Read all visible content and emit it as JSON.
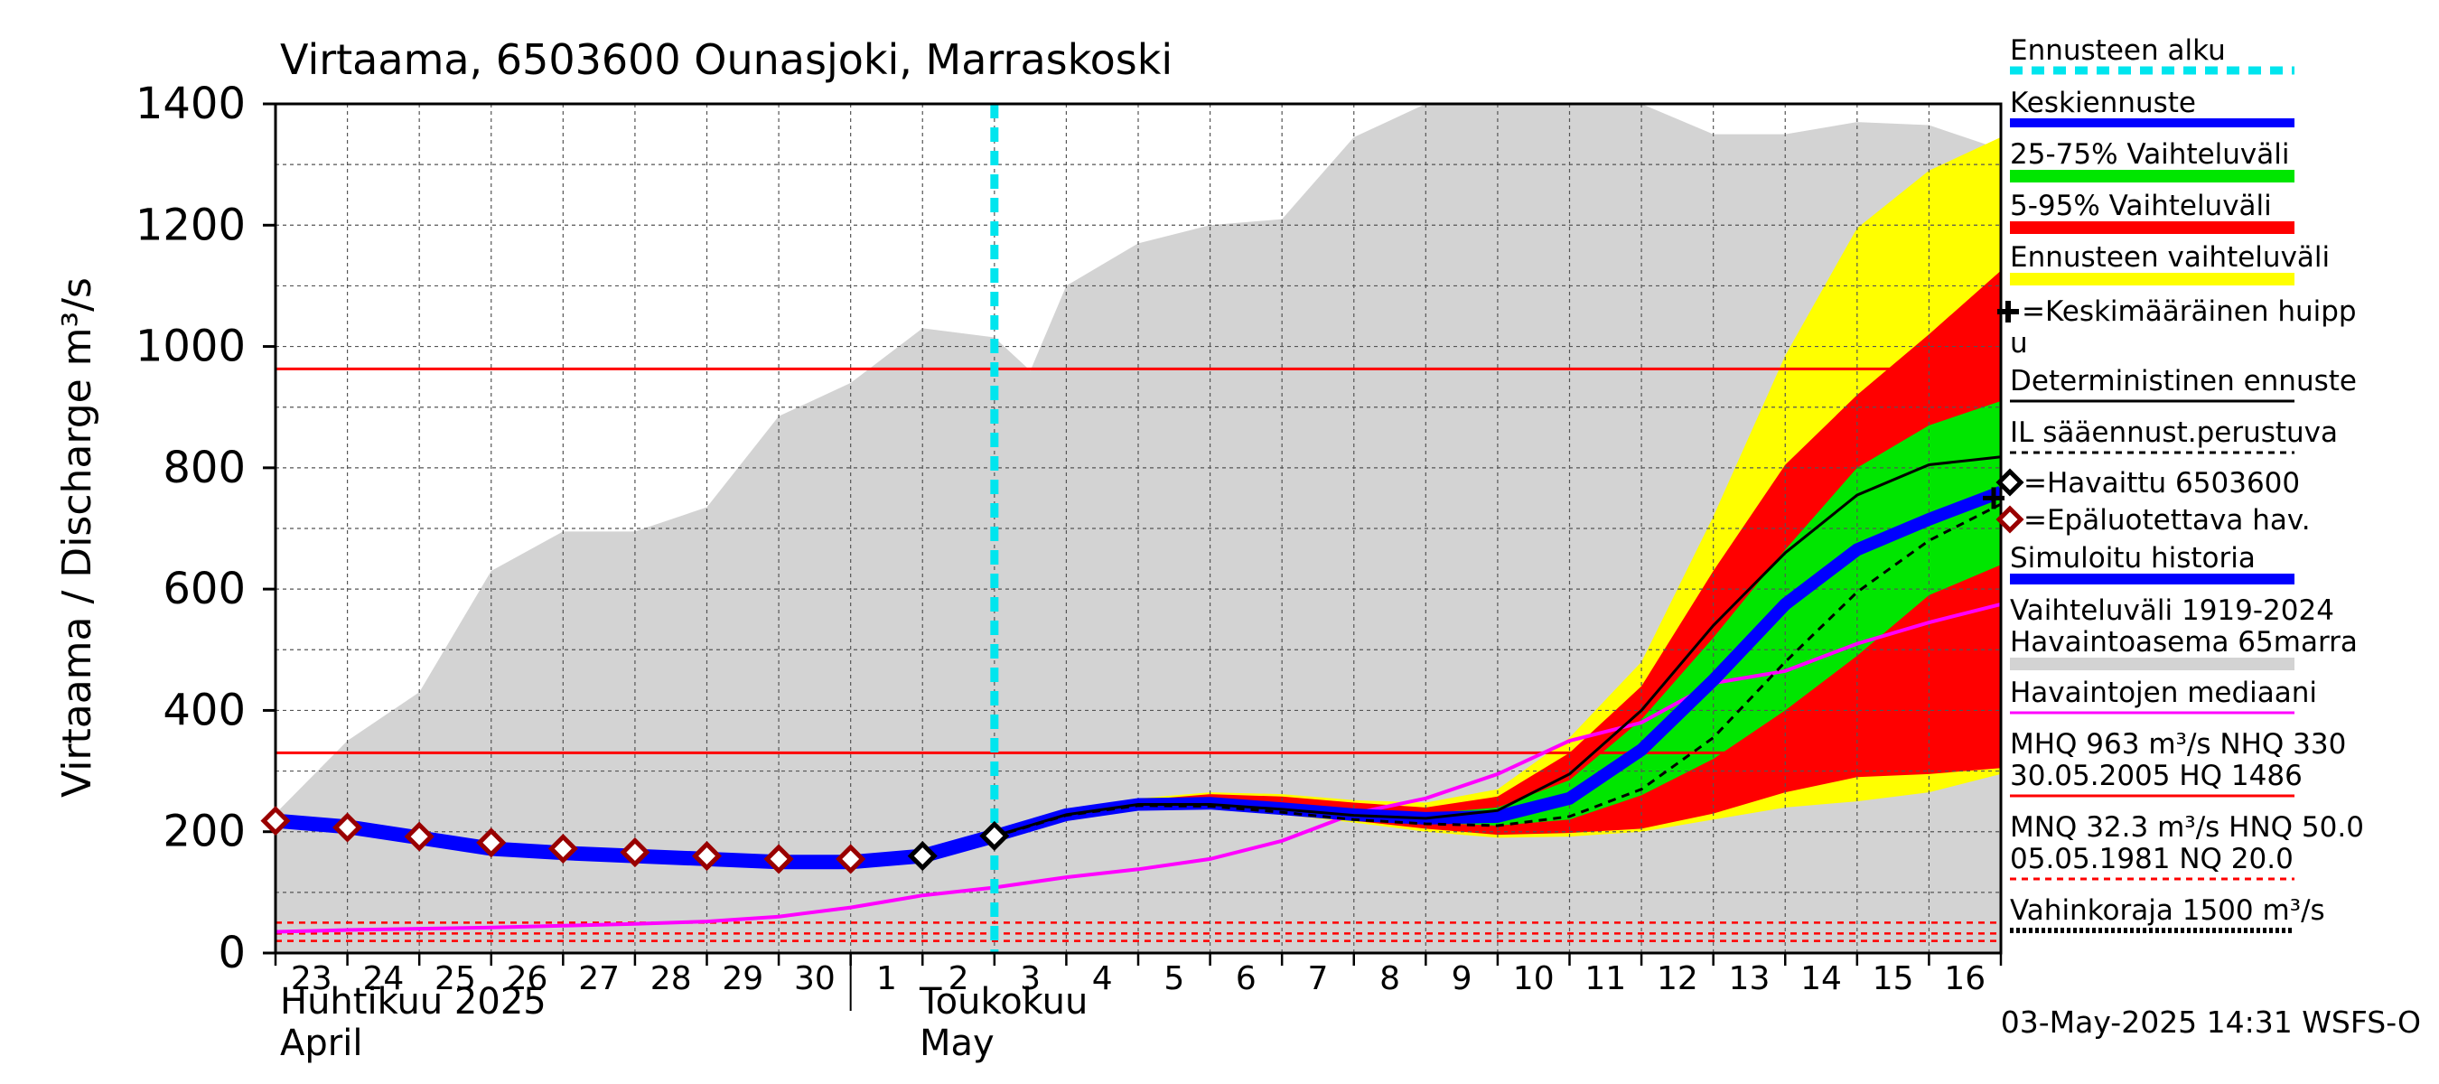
{
  "chart_data": {
    "type": "area",
    "title": "Virtaama, 6503600 Ounasjoki, Marraskoski",
    "ylabel": "Virtaama / Discharge   m³/s",
    "ylim": [
      0,
      1400
    ],
    "yticks": [
      0,
      200,
      400,
      600,
      800,
      1000,
      1200,
      1400
    ],
    "grid": true,
    "x_start": "2025-04-23",
    "x_end": "2025-05-17",
    "day_labels": [
      "23",
      "24",
      "25",
      "26",
      "27",
      "28",
      "29",
      "30",
      "1",
      "2",
      "3",
      "4",
      "5",
      "6",
      "7",
      "8",
      "9",
      "10",
      "11",
      "12",
      "13",
      "14",
      "15",
      "16"
    ],
    "month_labels": [
      {
        "day": "2025-04-23",
        "fi": "Huhtikuu  2025",
        "en": "April"
      },
      {
        "day": "2025-05-02",
        "fi": "Toukokuu",
        "en": "May"
      }
    ],
    "forecast_start": "2025-05-03",
    "timestamp": "03-May-2025 14:31 WSFS-O",
    "legend": {
      "forecast_start": "Ennusteen alku",
      "mean_forecast": "Keskiennuste",
      "band_25_75": "25-75% Vaihteluväli",
      "band_5_95": "5-95% Vaihteluväli",
      "forecast_range": "Ennusteen vaihteluväli",
      "mean_peak_1": "=Keskimääräinen huipp",
      "mean_peak_2": "u",
      "deterministic": "Deterministinen ennuste",
      "il_forecast": "IL sääennust.perustuva",
      "observed": "=Havaittu 6503600",
      "unreliable": "=Epäluotettava hav.",
      "simulated": "Simuloitu historia",
      "range_hist_1": "Vaihteluväli 1919-2024",
      "range_hist_2": " Havaintoasema 65marra",
      "median": "Havaintojen mediaani",
      "mhq_1": "MHQ  963 m³/s NHQ  330",
      "mhq_2": "30.05.2005 HQ 1486",
      "mnq_1": "MNQ 32.3 m³/s HNQ 50.0",
      "mnq_2": "05.05.1981 NQ 20.0",
      "damage": "Vahinkoraja 1500 m³/s"
    },
    "colors": {
      "history_range": "#d3d3d3",
      "forecast_range": "#ffff00",
      "band_5_95": "#ff0000",
      "band_25_75": "#00e600",
      "mean_forecast": "#0000ff",
      "forecast_start": "#00e5ee",
      "median": "#ff00ff",
      "reference_lines": "#ff0000",
      "unreliable_marker": "#990000"
    },
    "reference_lines": {
      "MHQ": 963,
      "NHQ": 330,
      "HNQ": 50.0,
      "MNQ": 32.3,
      "NQ": 20.0
    },
    "series": {
      "history_max": {
        "x": [
          "2025-04-23",
          "2025-04-24",
          "2025-04-25",
          "2025-04-26",
          "2025-04-27",
          "2025-04-28",
          "2025-04-29",
          "2025-04-30",
          "2025-05-01",
          "2025-05-02",
          "2025-05-03",
          "2025-05-03T12",
          "2025-05-04",
          "2025-05-05",
          "2025-05-06",
          "2025-05-07",
          "2025-05-08",
          "2025-05-09",
          "2025-05-10",
          "2025-05-11",
          "2025-05-12",
          "2025-05-13",
          "2025-05-14",
          "2025-05-15",
          "2025-05-16",
          "2025-05-17"
        ],
        "y": [
          230,
          350,
          430,
          630,
          695,
          695,
          735,
          885,
          940,
          1030,
          1015,
          960,
          1100,
          1170,
          1200,
          1210,
          1345,
          1400,
          1400,
          1400,
          1400,
          1350,
          1350,
          1370,
          1365,
          1325
        ]
      },
      "history_min": {
        "x": [
          "2025-04-23",
          "2025-05-17"
        ],
        "y": [
          0,
          0
        ]
      },
      "forecast_range_upper": {
        "x": [
          "2025-05-03",
          "2025-05-04",
          "2025-05-05",
          "2025-05-06",
          "2025-05-07",
          "2025-05-08",
          "2025-05-09",
          "2025-05-10",
          "2025-05-11",
          "2025-05-12",
          "2025-05-13",
          "2025-05-14",
          "2025-05-15",
          "2025-05-16",
          "2025-05-17"
        ],
        "y": [
          195,
          235,
          255,
          265,
          262,
          252,
          248,
          270,
          355,
          480,
          720,
          985,
          1195,
          1290,
          1345
        ]
      },
      "forecast_range_lower": {
        "x": [
          "2025-05-03",
          "2025-05-04",
          "2025-05-05",
          "2025-05-06",
          "2025-05-07",
          "2025-05-08",
          "2025-05-09",
          "2025-05-10",
          "2025-05-11",
          "2025-05-12",
          "2025-05-13",
          "2025-05-14",
          "2025-05-15",
          "2025-05-16",
          "2025-05-17"
        ],
        "y": [
          190,
          225,
          240,
          238,
          228,
          215,
          200,
          190,
          192,
          200,
          220,
          240,
          250,
          265,
          295
        ]
      },
      "p95": {
        "x": [
          "2025-05-03",
          "2025-05-04",
          "2025-05-05",
          "2025-05-06",
          "2025-05-07",
          "2025-05-08",
          "2025-05-09",
          "2025-05-10",
          "2025-05-11",
          "2025-05-12",
          "2025-05-13",
          "2025-05-14",
          "2025-05-15",
          "2025-05-16",
          "2025-05-17"
        ],
        "y": [
          195,
          233,
          252,
          262,
          258,
          248,
          240,
          258,
          330,
          440,
          630,
          805,
          920,
          1020,
          1125
        ]
      },
      "p5": {
        "x": [
          "2025-05-03",
          "2025-05-04",
          "2025-05-05",
          "2025-05-06",
          "2025-05-07",
          "2025-05-08",
          "2025-05-09",
          "2025-05-10",
          "2025-05-11",
          "2025-05-12",
          "2025-05-13",
          "2025-05-14",
          "2025-05-15",
          "2025-05-16",
          "2025-05-17"
        ],
        "y": [
          190,
          226,
          242,
          240,
          230,
          218,
          205,
          195,
          198,
          205,
          230,
          265,
          290,
          295,
          305
        ]
      },
      "p75": {
        "x": [
          "2025-05-03",
          "2025-05-04",
          "2025-05-05",
          "2025-05-06",
          "2025-05-07",
          "2025-05-08",
          "2025-05-09",
          "2025-05-10",
          "2025-05-11",
          "2025-05-12",
          "2025-05-13",
          "2025-05-14",
          "2025-05-15",
          "2025-05-16",
          "2025-05-17"
        ],
        "y": [
          193,
          230,
          248,
          252,
          245,
          235,
          230,
          240,
          285,
          385,
          520,
          665,
          800,
          870,
          910
        ]
      },
      "p25": {
        "x": [
          "2025-05-03",
          "2025-05-04",
          "2025-05-05",
          "2025-05-06",
          "2025-05-07",
          "2025-05-08",
          "2025-05-09",
          "2025-05-10",
          "2025-05-11",
          "2025-05-12",
          "2025-05-13",
          "2025-05-14",
          "2025-05-15",
          "2025-05-16",
          "2025-05-17"
        ],
        "y": [
          191,
          228,
          245,
          245,
          235,
          225,
          215,
          210,
          220,
          260,
          320,
          400,
          490,
          590,
          640
        ]
      },
      "mean_forecast": {
        "x": [
          "2025-05-03",
          "2025-05-04",
          "2025-05-05",
          "2025-05-06",
          "2025-05-07",
          "2025-05-08",
          "2025-05-09",
          "2025-05-10",
          "2025-05-11",
          "2025-05-12",
          "2025-05-13",
          "2025-05-14",
          "2025-05-15",
          "2025-05-16",
          "2025-05-17"
        ],
        "y": [
          193,
          228,
          245,
          247,
          238,
          228,
          222,
          225,
          255,
          335,
          450,
          575,
          665,
          715,
          760
        ]
      },
      "deterministic": {
        "x": [
          "2025-05-03",
          "2025-05-04",
          "2025-05-05",
          "2025-05-06",
          "2025-05-07",
          "2025-05-08",
          "2025-05-09",
          "2025-05-10",
          "2025-05-11",
          "2025-05-12",
          "2025-05-13",
          "2025-05-14",
          "2025-05-15",
          "2025-05-16",
          "2025-05-17"
        ],
        "y": [
          193,
          228,
          245,
          245,
          237,
          227,
          222,
          235,
          295,
          400,
          540,
          660,
          755,
          805,
          818
        ]
      },
      "il_forecast": {
        "x": [
          "2025-05-03",
          "2025-05-04",
          "2025-05-05",
          "2025-05-06",
          "2025-05-07",
          "2025-05-08",
          "2025-05-09",
          "2025-05-10",
          "2025-05-11",
          "2025-05-12",
          "2025-05-13",
          "2025-05-14",
          "2025-05-15",
          "2025-05-16",
          "2025-05-17"
        ],
        "y": [
          192,
          227,
          243,
          242,
          232,
          220,
          213,
          210,
          225,
          270,
          355,
          480,
          595,
          680,
          740
        ]
      },
      "simulated_history": {
        "x": [
          "2025-04-23",
          "2025-04-24",
          "2025-04-25",
          "2025-04-26",
          "2025-04-27",
          "2025-04-28",
          "2025-04-29",
          "2025-04-30",
          "2025-05-01",
          "2025-05-02",
          "2025-05-03"
        ],
        "y": [
          218,
          208,
          190,
          172,
          165,
          160,
          155,
          150,
          150,
          160,
          193
        ]
      },
      "median": {
        "x": [
          "2025-04-23",
          "2025-04-24",
          "2025-04-25",
          "2025-04-26",
          "2025-04-27",
          "2025-04-28",
          "2025-04-29",
          "2025-04-30",
          "2025-05-01",
          "2025-05-02",
          "2025-05-03",
          "2025-05-04",
          "2025-05-05",
          "2025-05-06",
          "2025-05-07",
          "2025-05-08",
          "2025-05-09",
          "2025-05-10",
          "2025-05-11",
          "2025-05-12",
          "2025-05-13",
          "2025-05-14",
          "2025-05-15",
          "2025-05-16",
          "2025-05-17"
        ],
        "y": [
          35,
          38,
          40,
          42,
          45,
          48,
          52,
          60,
          75,
          95,
          108,
          125,
          138,
          155,
          185,
          230,
          255,
          295,
          350,
          380,
          445,
          465,
          510,
          545,
          575
        ]
      },
      "observed": {
        "x": [
          "2025-05-02",
          "2025-05-03"
        ],
        "y": [
          160,
          193
        ]
      },
      "unreliable": {
        "x": [
          "2025-04-23",
          "2025-04-24",
          "2025-04-25",
          "2025-04-26",
          "2025-04-27",
          "2025-04-28",
          "2025-04-29",
          "2025-04-30",
          "2025-05-01"
        ],
        "y": [
          218,
          207,
          192,
          182,
          172,
          166,
          160,
          155,
          155
        ]
      },
      "mean_peak": {
        "x": [
          "2025-05-17"
        ],
        "y": [
          750
        ]
      }
    }
  }
}
